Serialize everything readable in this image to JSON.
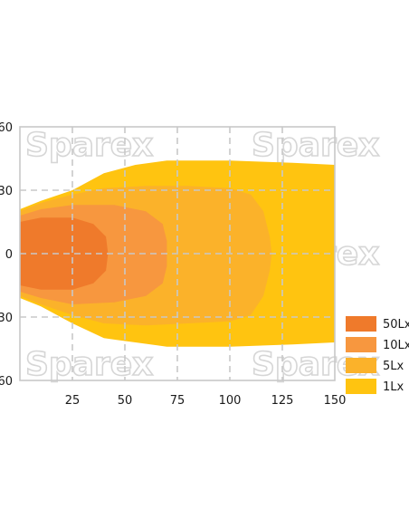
{
  "watermark": "Sparex",
  "chart_data": {
    "type": "area",
    "title": "",
    "xlabel": "",
    "ylabel": "",
    "xlim": [
      0,
      150
    ],
    "ylim": [
      -60,
      60
    ],
    "x_ticks": [
      "25",
      "50",
      "75",
      "100",
      "125",
      "150"
    ],
    "y_ticks": [
      "60",
      "30",
      "0",
      "-30",
      "-60"
    ],
    "grid": true,
    "legend_position": "right",
    "series": [
      {
        "name": "1Lx",
        "color": "#ffc410",
        "outline_upper": [
          [
            0,
            21
          ],
          [
            10,
            25
          ],
          [
            25,
            30
          ],
          [
            40,
            38
          ],
          [
            55,
            42
          ],
          [
            70,
            44
          ],
          [
            100,
            44
          ],
          [
            130,
            43
          ],
          [
            150,
            42
          ]
        ],
        "outline_lower": [
          [
            0,
            -21
          ],
          [
            10,
            -25
          ],
          [
            25,
            -33
          ],
          [
            40,
            -40
          ],
          [
            55,
            -42
          ],
          [
            70,
            -44
          ],
          [
            100,
            -44
          ],
          [
            130,
            -43
          ],
          [
            150,
            -42
          ]
        ]
      },
      {
        "name": "5Lx",
        "color": "#fbb22a",
        "outline_upper": [
          [
            0,
            20
          ],
          [
            10,
            24
          ],
          [
            25,
            28
          ],
          [
            40,
            31
          ],
          [
            60,
            32
          ],
          [
            80,
            32
          ],
          [
            100,
            31
          ],
          [
            110,
            28
          ],
          [
            116,
            20
          ],
          [
            119,
            8
          ],
          [
            120,
            0
          ]
        ],
        "outline_lower": [
          [
            0,
            -20
          ],
          [
            10,
            -24
          ],
          [
            25,
            -29
          ],
          [
            40,
            -33
          ],
          [
            60,
            -34
          ],
          [
            80,
            -33
          ],
          [
            100,
            -32
          ],
          [
            110,
            -29
          ],
          [
            116,
            -20
          ],
          [
            119,
            -8
          ],
          [
            120,
            0
          ]
        ]
      },
      {
        "name": "10Lx",
        "color": "#f7973f",
        "outline_upper": [
          [
            0,
            18
          ],
          [
            10,
            21
          ],
          [
            25,
            23
          ],
          [
            45,
            23
          ],
          [
            60,
            20
          ],
          [
            68,
            14
          ],
          [
            70,
            6
          ],
          [
            70,
            0
          ]
        ],
        "outline_lower": [
          [
            0,
            -18
          ],
          [
            10,
            -21
          ],
          [
            25,
            -24
          ],
          [
            45,
            -23
          ],
          [
            60,
            -20
          ],
          [
            68,
            -14
          ],
          [
            70,
            -6
          ],
          [
            70,
            0
          ]
        ]
      },
      {
        "name": "50Lx",
        "color": "#ef7a2b",
        "outline_upper": [
          [
            0,
            15
          ],
          [
            10,
            17
          ],
          [
            25,
            17
          ],
          [
            35,
            14
          ],
          [
            41,
            8
          ],
          [
            42,
            0
          ]
        ],
        "outline_lower": [
          [
            0,
            -15
          ],
          [
            10,
            -17
          ],
          [
            25,
            -17
          ],
          [
            35,
            -14
          ],
          [
            41,
            -8
          ],
          [
            42,
            0
          ]
        ]
      }
    ],
    "legend": [
      {
        "name": "50Lx",
        "color": "#ef7a2b"
      },
      {
        "name": "10Lx",
        "color": "#f7973f"
      },
      {
        "name": "5Lx",
        "color": "#fbb22a"
      },
      {
        "name": "1Lx",
        "color": "#ffc410"
      }
    ]
  }
}
